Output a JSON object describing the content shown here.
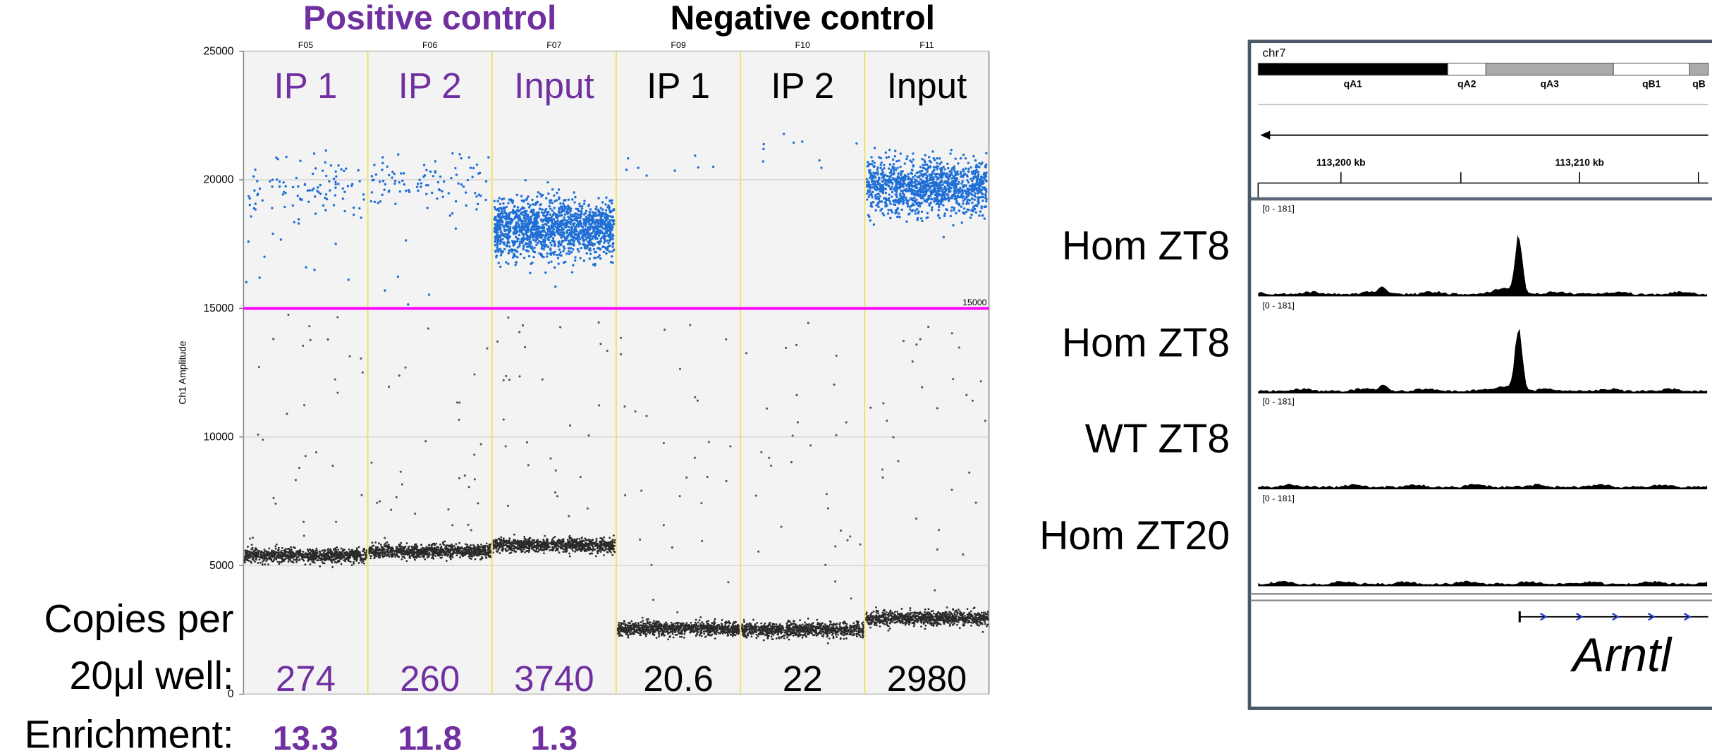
{
  "figure": {
    "ddpcr": {
      "groups": [
        {
          "title": "Positive control",
          "color": "#7030a0"
        },
        {
          "title": "Negative control",
          "color": "#000000"
        }
      ],
      "y_axis_label": "Ch1 Amplitude",
      "ylim": [
        0,
        25000
      ],
      "yticks": [
        0,
        5000,
        10000,
        15000,
        20000,
        25000
      ],
      "threshold": 15000,
      "threshold_color": "#ff00ff",
      "positive_color": "#1f6fd6",
      "negative_color": "#2a2a2a",
      "copies_label": [
        "Copies per",
        "20μl well:"
      ],
      "enrichment_label": "Enrichment:",
      "wells": [
        {
          "id": "F05",
          "label": "IP 1",
          "group": 0,
          "copies": 274,
          "enrichment": 13.3,
          "positive_amplitude": 19700,
          "negative_amplitude": 5400
        },
        {
          "id": "F06",
          "label": "IP 2",
          "group": 0,
          "copies": 260,
          "enrichment": 11.8,
          "positive_amplitude": 19800,
          "negative_amplitude": 5550
        },
        {
          "id": "F07",
          "label": "Input",
          "group": 0,
          "copies": 3740,
          "enrichment": 1.3,
          "positive_amplitude": 18100,
          "negative_amplitude": 5800
        },
        {
          "id": "F09",
          "label": "IP 1",
          "group": 1,
          "copies": 20.6,
          "positive_amplitude": 20500,
          "negative_amplitude": 2550
        },
        {
          "id": "F10",
          "label": "IP 2",
          "group": 1,
          "copies": 22,
          "positive_amplitude": 21000,
          "negative_amplitude": 2500
        },
        {
          "id": "F11",
          "label": "Input",
          "group": 1,
          "copies": 2980,
          "positive_amplitude": 19700,
          "negative_amplitude": 2950
        }
      ]
    },
    "browser": {
      "chromosome": "chr7",
      "bands": [
        {
          "label": "qA1",
          "color": "#000000"
        },
        {
          "label": "qA2",
          "color": "#ffffff"
        },
        {
          "label": "qA3",
          "color": "#aaaaaa"
        },
        {
          "label": "qB1",
          "color": "#ffffff"
        },
        {
          "label": "qB",
          "color": "#aaaaaa"
        }
      ],
      "ruler": [
        "113,200 kb",
        "113,210 kb"
      ],
      "tracks": [
        {
          "name": "Hom ZT8",
          "range": "[0 - 181]",
          "range_max": 181,
          "peak": 125
        },
        {
          "name": "Hom ZT8",
          "range": "[0 - 181]",
          "range_max": 181,
          "peak": 135
        },
        {
          "name": "WT ZT8",
          "range": "[0 - 181]",
          "range_max": 181,
          "peak": 0
        },
        {
          "name": "Hom ZT20",
          "range": "[0 - 181]",
          "range_max": 181,
          "peak": 0
        }
      ],
      "gene": "Arntl"
    }
  }
}
